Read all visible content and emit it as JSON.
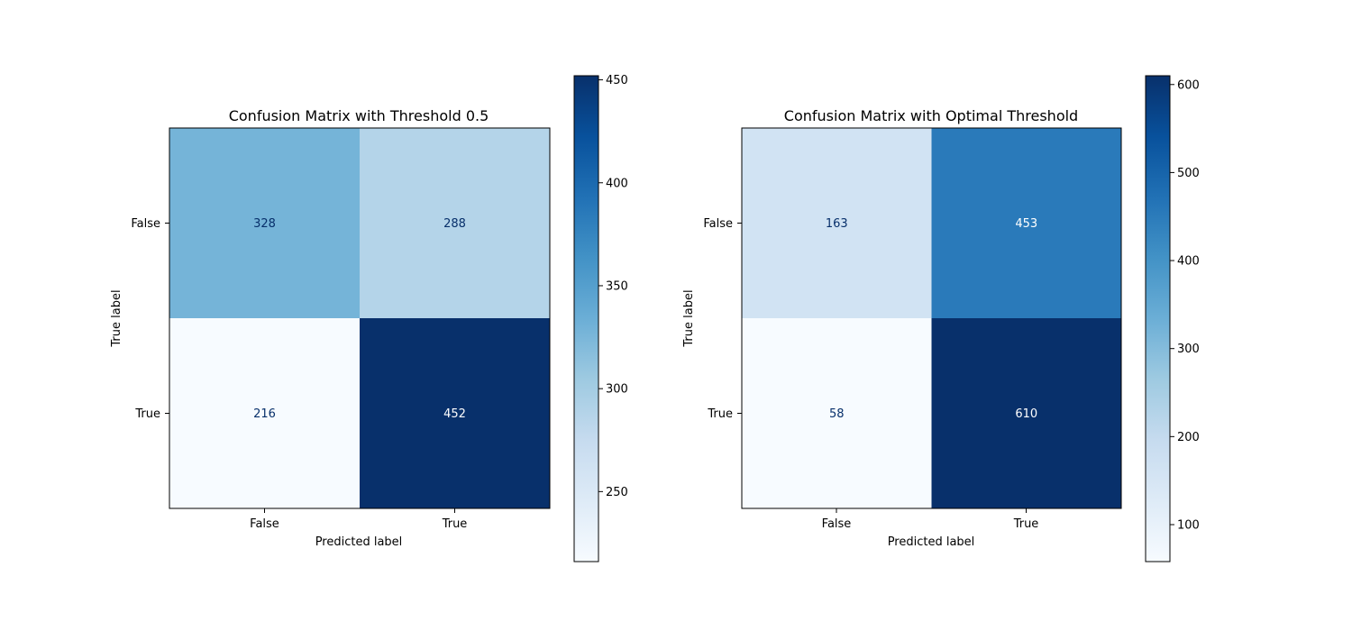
{
  "chart_data": [
    {
      "type": "heatmap",
      "title": "Confusion Matrix with Threshold 0.5",
      "xlabel": "Predicted label",
      "ylabel": "True label",
      "x_categories": [
        "False",
        "True"
      ],
      "y_categories": [
        "False",
        "True"
      ],
      "values": [
        [
          328,
          288
        ],
        [
          216,
          452
        ]
      ],
      "colormap": "Blues",
      "colorbar": {
        "vmin": 216,
        "vmax": 452,
        "ticks": [
          250,
          300,
          350,
          400,
          450
        ]
      }
    },
    {
      "type": "heatmap",
      "title": "Confusion Matrix with Optimal Threshold",
      "xlabel": "Predicted label",
      "ylabel": "True label",
      "x_categories": [
        "False",
        "True"
      ],
      "y_categories": [
        "False",
        "True"
      ],
      "values": [
        [
          163,
          453
        ],
        [
          58,
          610
        ]
      ],
      "colormap": "Blues",
      "colorbar": {
        "vmin": 58,
        "vmax": 610,
        "ticks": [
          100,
          200,
          300,
          400,
          500,
          600
        ]
      }
    }
  ]
}
